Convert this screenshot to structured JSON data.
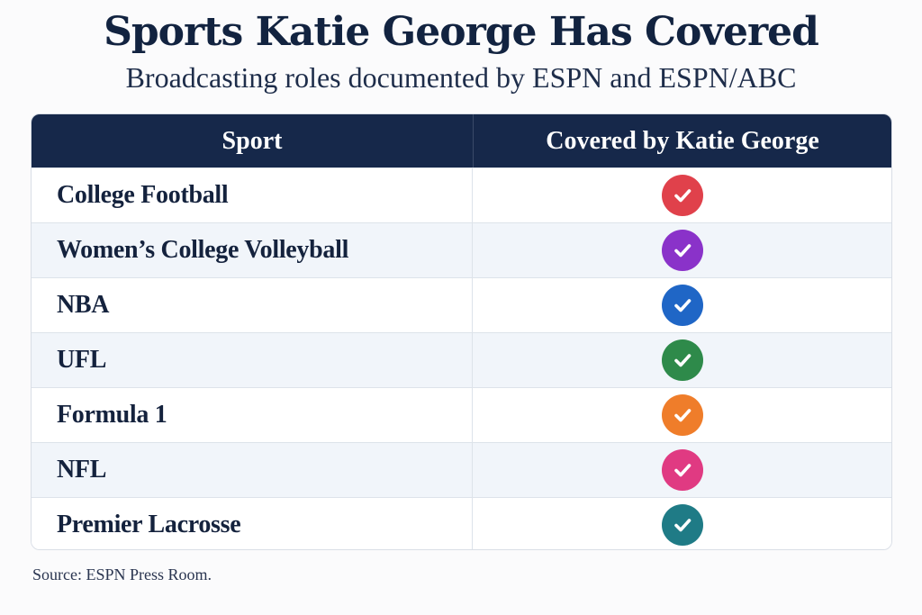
{
  "title": "Sports Katie George Has Covered",
  "subtitle": "Broadcasting roles documented by ESPN and ESPN/ABC",
  "table": {
    "headers": [
      "Sport",
      "Covered by Katie George"
    ],
    "rows": [
      {
        "sport": "College Football",
        "covered": true,
        "check_color": "#e0414b",
        "icon": "check-icon"
      },
      {
        "sport": "Women’s College Volleyball",
        "covered": true,
        "check_color": "#8a32c9",
        "icon": "check-icon"
      },
      {
        "sport": "NBA",
        "covered": true,
        "check_color": "#1f66c6",
        "icon": "check-icon"
      },
      {
        "sport": "UFL",
        "covered": true,
        "check_color": "#2e8a4a",
        "icon": "check-icon"
      },
      {
        "sport": "Formula 1",
        "covered": true,
        "check_color": "#ef7d2a",
        "icon": "check-icon"
      },
      {
        "sport": "NFL",
        "covered": true,
        "check_color": "#e03a82",
        "icon": "check-icon"
      },
      {
        "sport": "Premier Lacrosse",
        "covered": true,
        "check_color": "#1f7b86",
        "icon": "check-icon"
      }
    ]
  },
  "source": "Source: ESPN Press Room.",
  "colors": {
    "header_bg": "#16284a",
    "title": "#122340"
  }
}
